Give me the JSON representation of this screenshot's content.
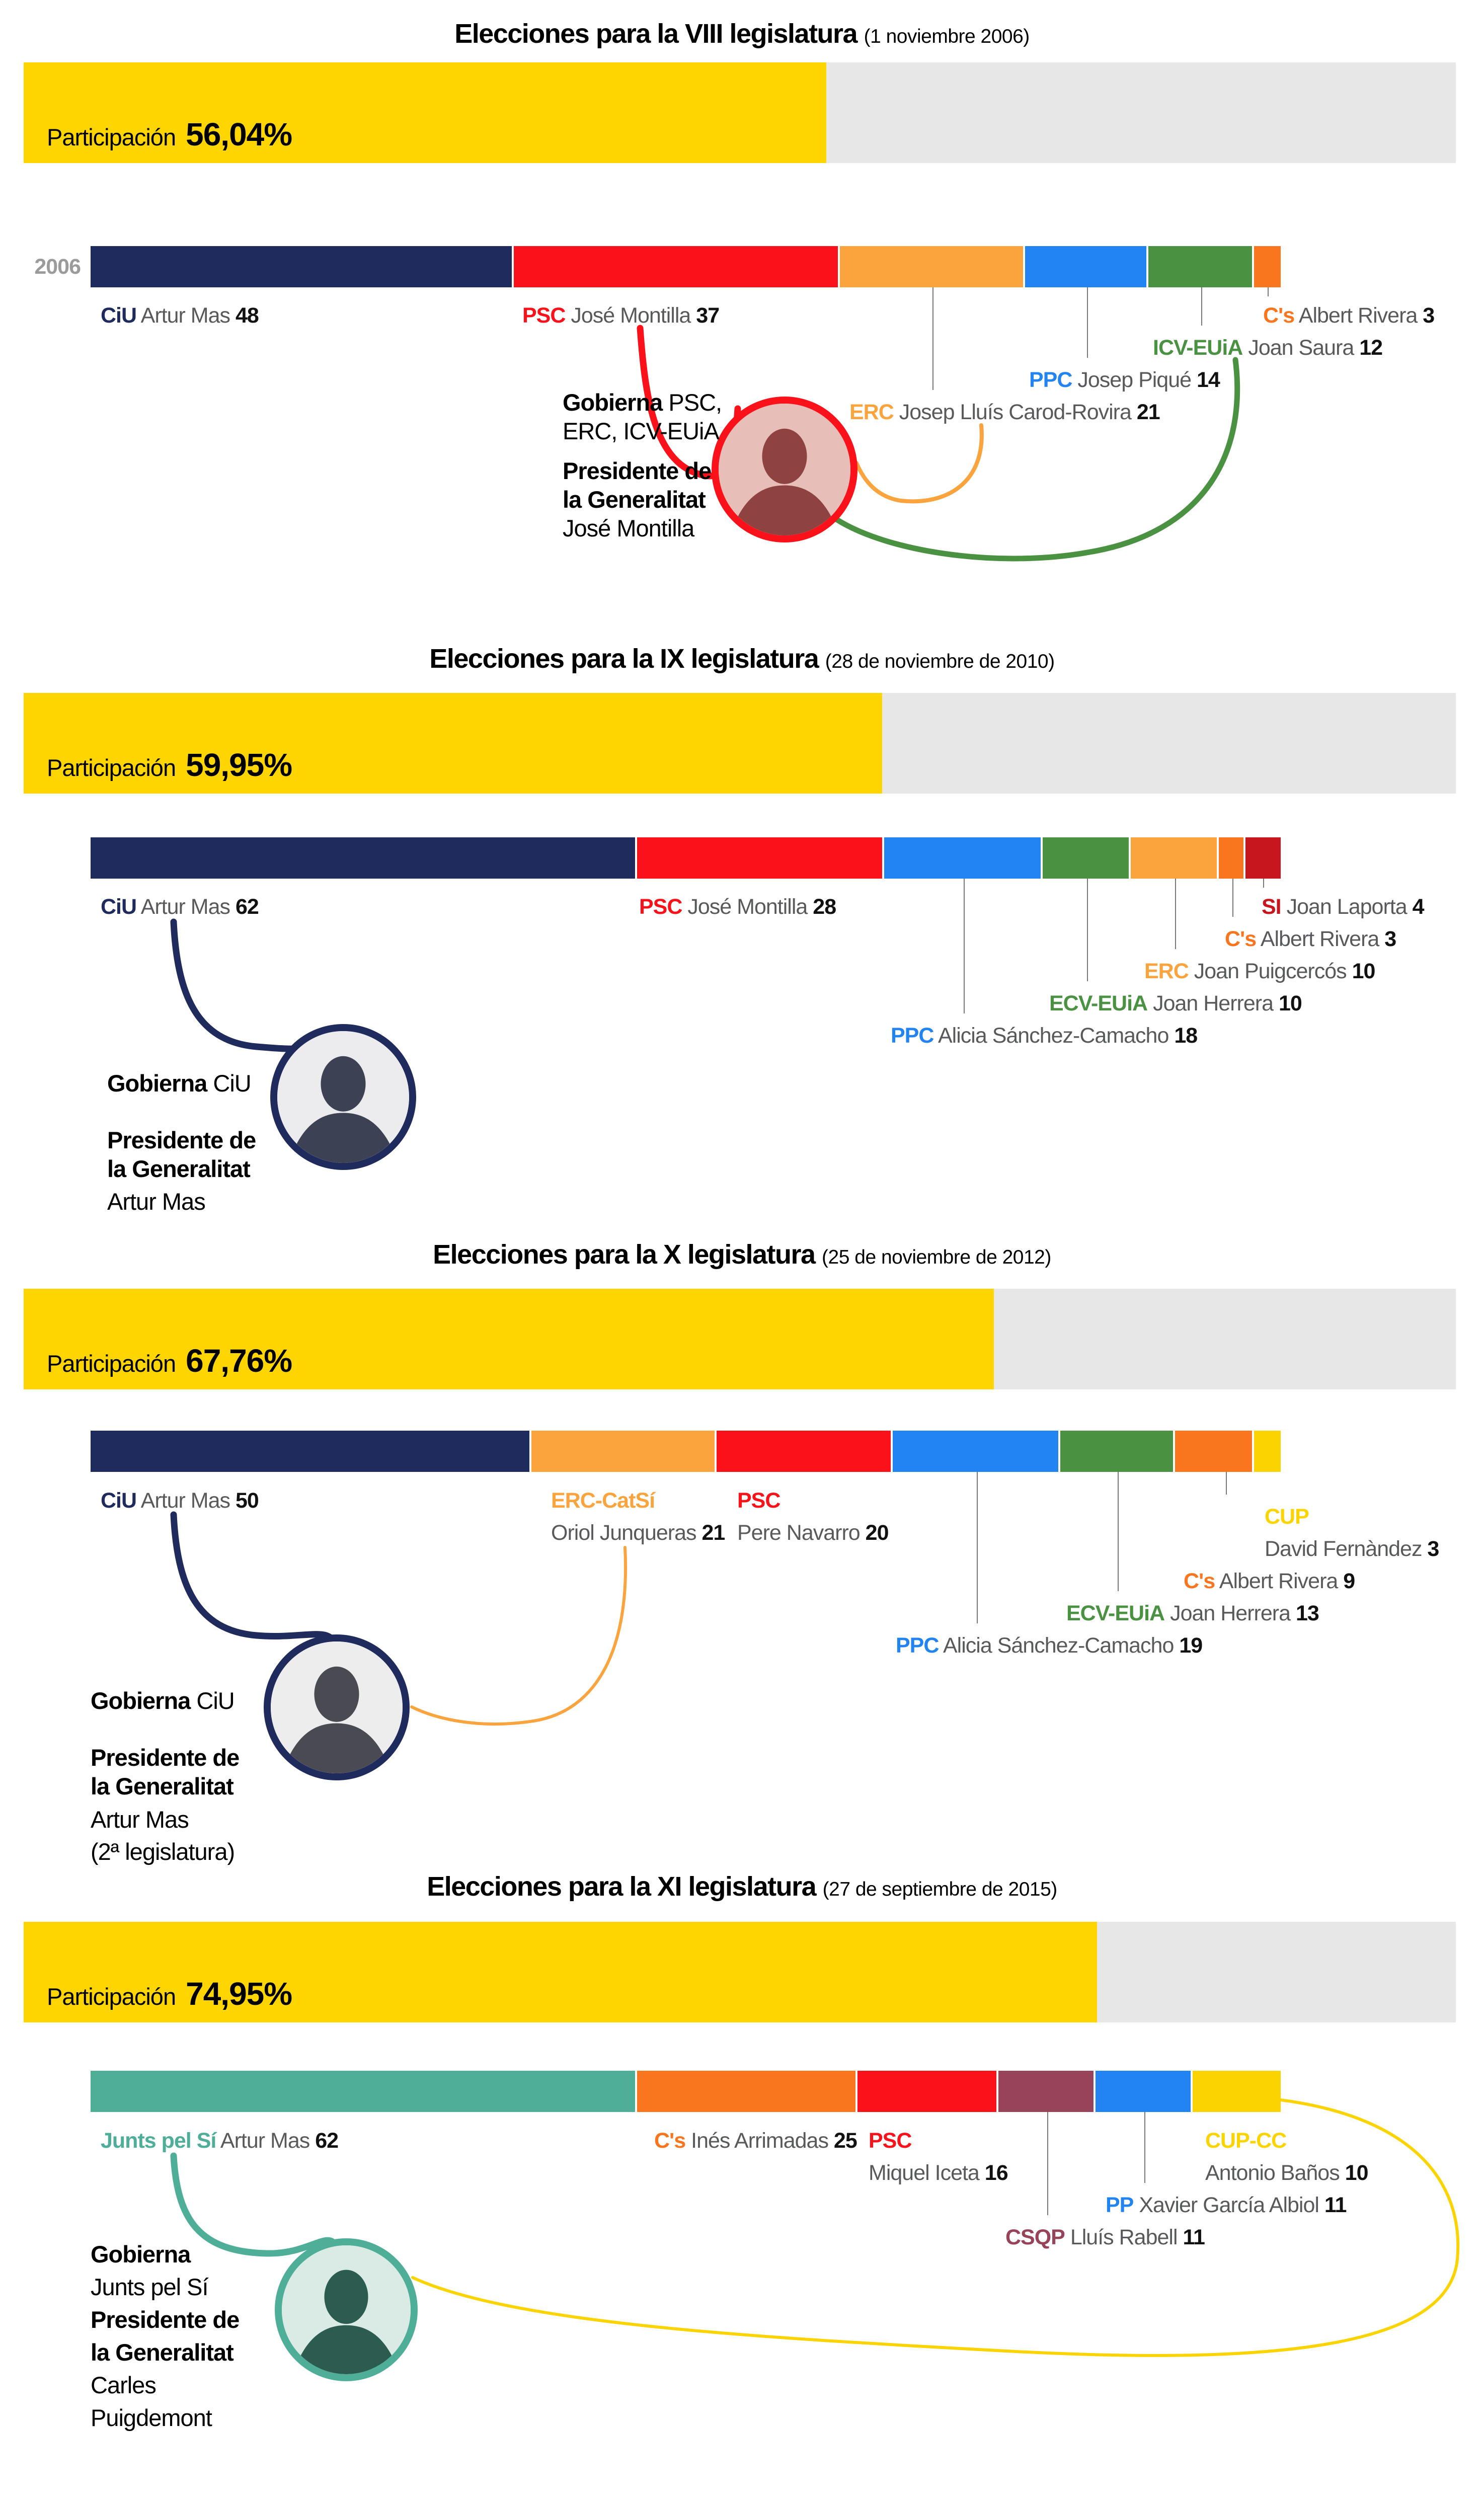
{
  "colors": {
    "participation_fill": "#FFD500",
    "participation_track": "#E7E7E7",
    "connector": "#777777",
    "ciu": "#1F2A5D",
    "psc": "#FA1119",
    "erc": "#FBA33C",
    "ppc": "#2283F2",
    "icv": "#4A9142",
    "cs": "#F9761F",
    "si": "#C8161E",
    "cup": "#FBD400",
    "jxsi": "#4EAE97",
    "csqp": "#97435A",
    "pp": "#2283F2",
    "name_text": "#58595B",
    "seat_text": "#111111",
    "year_text": "#9B9B9B"
  },
  "sections": [
    {
      "title": "Elecciones para la VIII legislatura",
      "date": "(1 noviembre 2006)",
      "participation_label": "Participación",
      "participation_value": "56,04%",
      "participation_pct": 56.04,
      "year": "2006",
      "total_seats": 135,
      "segments": [
        {
          "party": "CiU",
          "seats": 48,
          "color": "#1F2A5D"
        },
        {
          "party": "PSC",
          "seats": 37,
          "color": "#FA1119"
        },
        {
          "party": "ERC",
          "seats": 21,
          "color": "#FBA33C"
        },
        {
          "party": "PPC",
          "seats": 14,
          "color": "#2283F2"
        },
        {
          "party": "ICV-EUiA",
          "seats": 12,
          "color": "#4A9142"
        },
        {
          "party": "C's",
          "seats": 3,
          "color": "#F9761F"
        }
      ],
      "labels": {
        "ciu": {
          "party": "CiU",
          "name": "Artur Mas",
          "seats": "48",
          "color": "#1F2A5D"
        },
        "psc": {
          "party": "PSC",
          "name": "José Montilla",
          "seats": "37",
          "color": "#FA1119"
        },
        "cs": {
          "party": "C's",
          "name": "Albert Rivera",
          "seats": "3",
          "color": "#F9761F"
        },
        "icv": {
          "party": "ICV-EUiA",
          "name": "Joan Saura",
          "seats": "12",
          "color": "#4A9142"
        },
        "ppc": {
          "party": "PPC",
          "name": "Josep Piqué",
          "seats": "14",
          "color": "#2283F2"
        },
        "erc": {
          "party": "ERC",
          "name": "Josep Lluís Carod-Rovira",
          "seats": "21",
          "color": "#FBA33C"
        }
      },
      "gobierna": [
        {
          "bold": "Gobierna",
          "rest": " PSC,"
        },
        {
          "rest": "ERC, ICV-EUiA"
        },
        {
          "bold": "Presidente de"
        },
        {
          "bold": "la Generalitat"
        },
        {
          "rest": "José Montilla"
        }
      ],
      "photo": {
        "border": "#FA1119",
        "light": "#E8BEB8",
        "dark": "#8E4340"
      }
    },
    {
      "title": "Elecciones para la IX legislatura",
      "date": "(28 de noviembre de 2010)",
      "participation_label": "Participación",
      "participation_value": "59,95%",
      "participation_pct": 59.95,
      "total_seats": 135,
      "segments": [
        {
          "party": "CiU",
          "seats": 62,
          "color": "#1F2A5D"
        },
        {
          "party": "PSC",
          "seats": 28,
          "color": "#FA1119"
        },
        {
          "party": "PPC",
          "seats": 18,
          "color": "#2283F2"
        },
        {
          "party": "ECV-EUiA",
          "seats": 10,
          "color": "#4A9142"
        },
        {
          "party": "ERC",
          "seats": 10,
          "color": "#FBA33C"
        },
        {
          "party": "C's",
          "seats": 3,
          "color": "#F9761F"
        },
        {
          "party": "SI",
          "seats": 4,
          "color": "#C8161E"
        }
      ],
      "labels": {
        "ciu": {
          "party": "CiU",
          "name": "Artur Mas",
          "seats": "62",
          "color": "#1F2A5D"
        },
        "psc": {
          "party": "PSC",
          "name": "José Montilla",
          "seats": "28",
          "color": "#FA1119"
        },
        "si": {
          "party": "SI",
          "name": "Joan Laporta",
          "seats": "4",
          "color": "#C8161E"
        },
        "cs": {
          "party": "C's",
          "name": "Albert Rivera",
          "seats": "3",
          "color": "#F9761F"
        },
        "erc": {
          "party": "ERC",
          "name": "Joan Puigcercós",
          "seats": "10",
          "color": "#FBA33C"
        },
        "ecv": {
          "party": "ECV-EUiA",
          "name": "Joan Herrera",
          "seats": "10",
          "color": "#4A9142"
        },
        "ppc": {
          "party": "PPC",
          "name": "Alicia Sánchez-Camacho",
          "seats": "18",
          "color": "#2283F2"
        }
      },
      "gobierna": [
        {
          "bold": "Gobierna",
          "rest": " CiU"
        },
        {
          "bold": "Presidente de"
        },
        {
          "bold": "la Generalitat"
        },
        {
          "rest": "Artur Mas"
        }
      ],
      "photo": {
        "border": "#1F2A5D",
        "light": "#ECECEE",
        "dark": "#3C4254"
      }
    },
    {
      "title": "Elecciones para la X legislatura",
      "date": "(25 de noviembre de 2012)",
      "participation_label": "Participación",
      "participation_value": "67,76%",
      "participation_pct": 67.76,
      "total_seats": 135,
      "segments": [
        {
          "party": "CiU",
          "seats": 50,
          "color": "#1F2A5D"
        },
        {
          "party": "ERC-CatSí",
          "seats": 21,
          "color": "#FBA33C"
        },
        {
          "party": "PSC",
          "seats": 20,
          "color": "#FA1119"
        },
        {
          "party": "PPC",
          "seats": 19,
          "color": "#2283F2"
        },
        {
          "party": "ECV-EUiA",
          "seats": 13,
          "color": "#4A9142"
        },
        {
          "party": "C's",
          "seats": 9,
          "color": "#F9761F"
        },
        {
          "party": "CUP",
          "seats": 3,
          "color": "#FBD400"
        }
      ],
      "labels": {
        "ciu": {
          "party": "CiU",
          "name": "Artur Mas",
          "seats": "50",
          "color": "#1F2A5D"
        },
        "erccat": {
          "party": "ERC-CatSí",
          "name": "Oriol Junqueras",
          "seats": "21",
          "color": "#FBA33C"
        },
        "psc": {
          "party": "PSC",
          "name": "Pere Navarro",
          "seats": "20",
          "color": "#FA1119"
        },
        "cup": {
          "party": "CUP",
          "name": "David Fernàndez",
          "seats": "3",
          "color": "#FBD400"
        },
        "cs": {
          "party": "C's",
          "name": "Albert Rivera",
          "seats": "9",
          "color": "#F9761F"
        },
        "ecv": {
          "party": "ECV-EUiA",
          "name": "Joan Herrera",
          "seats": "13",
          "color": "#4A9142"
        },
        "ppc": {
          "party": "PPC",
          "name": "Alicia Sánchez-Camacho",
          "seats": "19",
          "color": "#2283F2"
        }
      },
      "gobierna": [
        {
          "bold": "Gobierna",
          "rest": " CiU"
        },
        {
          "bold": "Presidente de"
        },
        {
          "bold": "la Generalitat"
        },
        {
          "rest": "Artur Mas"
        },
        {
          "rest": "(2ª legislatura)"
        }
      ],
      "photo": {
        "border": "#1F2A5D",
        "light": "#EDEDED",
        "dark": "#4A4A52"
      }
    },
    {
      "title": "Elecciones para la XI legislatura",
      "date": "(27 de septiembre de 2015)",
      "participation_label": "Participación",
      "participation_value": "74,95%",
      "participation_pct": 74.95,
      "total_seats": 135,
      "segments": [
        {
          "party": "Junts pel Sí",
          "seats": 62,
          "color": "#4EAE97"
        },
        {
          "party": "C's",
          "seats": 25,
          "color": "#F9761F"
        },
        {
          "party": "PSC",
          "seats": 16,
          "color": "#FA1119"
        },
        {
          "party": "CSQP",
          "seats": 11,
          "color": "#97435A"
        },
        {
          "party": "PP",
          "seats": 11,
          "color": "#2283F2"
        },
        {
          "party": "CUP-CC",
          "seats": 10,
          "color": "#FBD400"
        }
      ],
      "labels": {
        "jxsi": {
          "party": "Junts pel Sí",
          "name": "Artur Mas",
          "seats": "62",
          "color": "#4EAE97"
        },
        "cs": {
          "party": "C's",
          "name": "Inés Arrimadas",
          "seats": "25",
          "color": "#F9761F"
        },
        "psc": {
          "party": "PSC",
          "name": "Miquel Iceta",
          "seats": "16",
          "color": "#FA1119"
        },
        "cupcc": {
          "party": "CUP-CC",
          "name": "Antonio Baños",
          "seats": "10",
          "color": "#FBD400"
        },
        "pp": {
          "party": "PP",
          "name": "Xavier García Albiol",
          "seats": "11",
          "color": "#2283F2"
        },
        "csqp": {
          "party": "CSQP",
          "name": "Lluís Rabell",
          "seats": "11",
          "color": "#97435A"
        }
      },
      "gobierna": [
        {
          "bold": "Gobierna"
        },
        {
          "rest": "Junts pel Sí"
        },
        {
          "bold": "Presidente de"
        },
        {
          "bold": "la Generalitat"
        },
        {
          "rest": "Carles"
        },
        {
          "rest": "Puigdemont"
        }
      ],
      "photo": {
        "border": "#4EAE97",
        "light": "#D9EBE4",
        "dark": "#2C5B50"
      }
    }
  ],
  "chart_data": [
    {
      "type": "bar",
      "stacked": true,
      "title": "Elecciones para la VIII legislatura",
      "subtitle": "(1 noviembre 2006)",
      "participation_pct": 56.04,
      "total_seats": 135,
      "categories": [
        "2006"
      ],
      "series": [
        {
          "name": "CiU",
          "leader": "Artur Mas",
          "values": [
            48
          ]
        },
        {
          "name": "PSC",
          "leader": "José Montilla",
          "values": [
            37
          ]
        },
        {
          "name": "ERC",
          "leader": "Josep Lluís Carod-Rovira",
          "values": [
            21
          ]
        },
        {
          "name": "PPC",
          "leader": "Josep Piqué",
          "values": [
            14
          ]
        },
        {
          "name": "ICV-EUiA",
          "leader": "Joan Saura",
          "values": [
            12
          ]
        },
        {
          "name": "C's",
          "leader": "Albert Rivera",
          "values": [
            3
          ]
        }
      ],
      "governing": "PSC, ERC, ICV-EUiA",
      "president": "José Montilla"
    },
    {
      "type": "bar",
      "stacked": true,
      "title": "Elecciones para la IX legislatura",
      "subtitle": "(28 de noviembre de 2010)",
      "participation_pct": 59.95,
      "total_seats": 135,
      "categories": [
        "2010"
      ],
      "series": [
        {
          "name": "CiU",
          "leader": "Artur Mas",
          "values": [
            62
          ]
        },
        {
          "name": "PSC",
          "leader": "José Montilla",
          "values": [
            28
          ]
        },
        {
          "name": "PPC",
          "leader": "Alicia Sánchez-Camacho",
          "values": [
            18
          ]
        },
        {
          "name": "ECV-EUiA",
          "leader": "Joan Herrera",
          "values": [
            10
          ]
        },
        {
          "name": "ERC",
          "leader": "Joan Puigcercós",
          "values": [
            10
          ]
        },
        {
          "name": "C's",
          "leader": "Albert Rivera",
          "values": [
            3
          ]
        },
        {
          "name": "SI",
          "leader": "Joan Laporta",
          "values": [
            4
          ]
        }
      ],
      "governing": "CiU",
      "president": "Artur Mas"
    },
    {
      "type": "bar",
      "stacked": true,
      "title": "Elecciones para la X legislatura",
      "subtitle": "(25 de noviembre de 2012)",
      "participation_pct": 67.76,
      "total_seats": 135,
      "categories": [
        "2012"
      ],
      "series": [
        {
          "name": "CiU",
          "leader": "Artur Mas",
          "values": [
            50
          ]
        },
        {
          "name": "ERC-CatSí",
          "leader": "Oriol Junqueras",
          "values": [
            21
          ]
        },
        {
          "name": "PSC",
          "leader": "Pere Navarro",
          "values": [
            20
          ]
        },
        {
          "name": "PPC",
          "leader": "Alicia Sánchez-Camacho",
          "values": [
            19
          ]
        },
        {
          "name": "ECV-EUiA",
          "leader": "Joan Herrera",
          "values": [
            13
          ]
        },
        {
          "name": "C's",
          "leader": "Albert Rivera",
          "values": [
            9
          ]
        },
        {
          "name": "CUP",
          "leader": "David Fernàndez",
          "values": [
            3
          ]
        }
      ],
      "governing": "CiU",
      "president": "Artur Mas (2ª legislatura)"
    },
    {
      "type": "bar",
      "stacked": true,
      "title": "Elecciones para la XI legislatura",
      "subtitle": "(27 de septiembre de 2015)",
      "participation_pct": 74.95,
      "total_seats": 135,
      "categories": [
        "2015"
      ],
      "series": [
        {
          "name": "Junts pel Sí",
          "leader": "Artur Mas",
          "values": [
            62
          ]
        },
        {
          "name": "C's",
          "leader": "Inés Arrimadas",
          "values": [
            25
          ]
        },
        {
          "name": "PSC",
          "leader": "Miquel Iceta",
          "values": [
            16
          ]
        },
        {
          "name": "CSQP",
          "leader": "Lluís Rabell",
          "values": [
            11
          ]
        },
        {
          "name": "PP",
          "leader": "Xavier García Albiol",
          "values": [
            11
          ]
        },
        {
          "name": "CUP-CC",
          "leader": "Antonio Baños",
          "values": [
            10
          ]
        }
      ],
      "governing": "Junts pel Sí",
      "president": "Carles Puigdemont"
    }
  ]
}
